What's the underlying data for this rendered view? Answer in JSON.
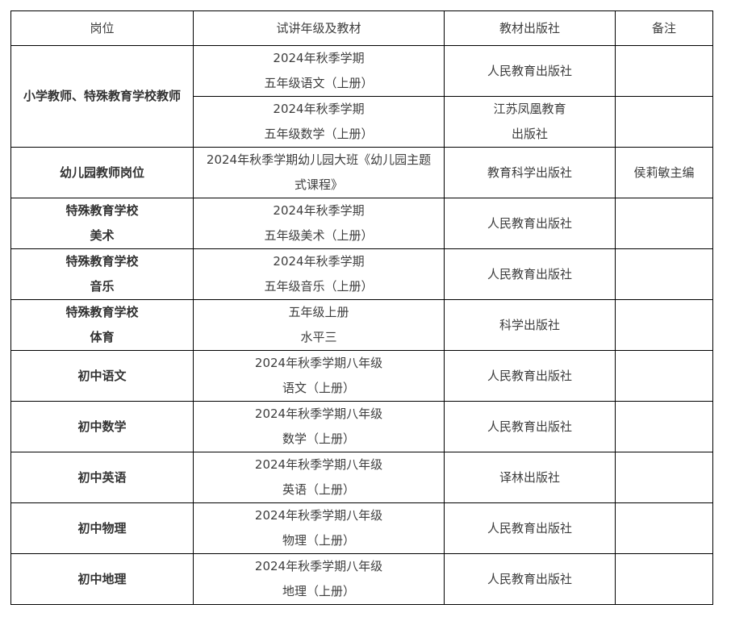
{
  "headers": [
    "岗位",
    "试讲年级及教材",
    "教材出版社",
    "备注"
  ],
  "primary": {
    "position": "小学教师、特殊教育学校教师",
    "rows": [
      {
        "material": [
          "2024年秋季学期",
          "五年级语文（上册）"
        ],
        "publisher": [
          "人民教育出版社"
        ],
        "note": ""
      },
      {
        "material": [
          "2024年秋季学期",
          "五年级数学（上册）"
        ],
        "publisher": [
          "江苏凤凰教育",
          "出版社"
        ],
        "note": ""
      }
    ]
  },
  "rows": [
    {
      "position": [
        "幼儿园教师岗位"
      ],
      "material": [
        "2024年秋季学期幼儿园大班《幼儿园主题",
        "式课程》"
      ],
      "publisher": [
        "教育科学出版社"
      ],
      "note": "侯莉敏主编"
    },
    {
      "position": [
        "特殊教育学校",
        "美术"
      ],
      "material": [
        "2024年秋季学期",
        "五年级美术（上册）"
      ],
      "publisher": [
        "人民教育出版社"
      ],
      "note": ""
    },
    {
      "position": [
        "特殊教育学校",
        "音乐"
      ],
      "material": [
        "2024年秋季学期",
        "五年级音乐（上册）"
      ],
      "publisher": [
        "人民教育出版社"
      ],
      "note": ""
    },
    {
      "position": [
        "特殊教育学校",
        "体育"
      ],
      "material": [
        "五年级上册",
        "水平三"
      ],
      "publisher": [
        "科学出版社"
      ],
      "note": ""
    },
    {
      "position": [
        "初中语文"
      ],
      "material": [
        "2024年秋季学期八年级",
        "语文（上册）"
      ],
      "publisher": [
        "人民教育出版社"
      ],
      "note": ""
    },
    {
      "position": [
        "初中数学"
      ],
      "material": [
        "2024年秋季学期八年级",
        "数学（上册）"
      ],
      "publisher": [
        "人民教育出版社"
      ],
      "note": ""
    },
    {
      "position": [
        "初中英语"
      ],
      "material": [
        "2024年秋季学期八年级",
        "英语（上册）"
      ],
      "publisher": [
        "译林出版社"
      ],
      "note": ""
    },
    {
      "position": [
        "初中物理"
      ],
      "material": [
        "2024年秋季学期八年级",
        "物理（上册）"
      ],
      "publisher": [
        "人民教育出版社"
      ],
      "note": ""
    },
    {
      "position": [
        "初中地理"
      ],
      "material": [
        "2024年秋季学期八年级",
        "地理（上册）"
      ],
      "publisher": [
        "人民教育出版社"
      ],
      "note": ""
    }
  ]
}
